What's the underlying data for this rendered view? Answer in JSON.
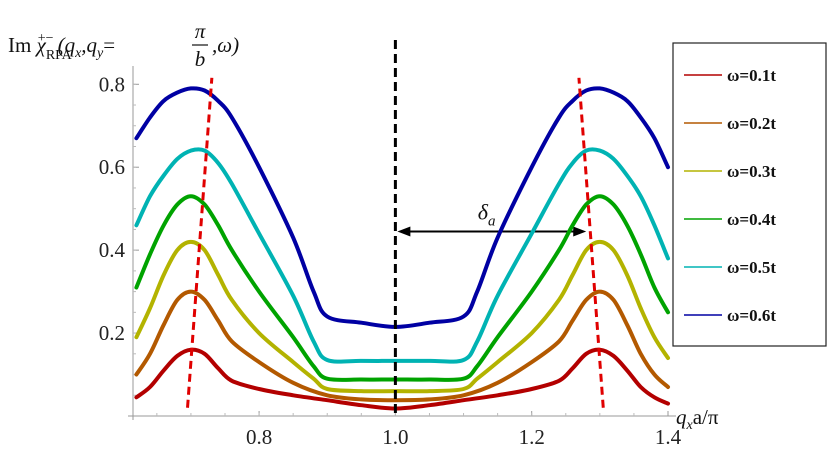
{
  "chart_data": {
    "type": "line",
    "ylabel": "Im χ_RPA^{+-}(q_x,q_y=π/b,ω)",
    "ylabel_parts": {
      "im": "Im",
      "chi": "χ",
      "sub": "RPA",
      "sup": "+−",
      "args_open": "(q",
      "qx_sub": "x",
      "comma_q": ",q",
      "qy_sub": "y",
      "eq": "=",
      "pi": "π",
      "b": "b",
      "tail": ",ω)"
    },
    "xlabel": "q_x a/π",
    "xlabel_parts": {
      "q": "q",
      "sub": "x",
      "rest": "a/π"
    },
    "xlim": [
      0.615,
      1.4
    ],
    "ylim": [
      0.0,
      0.82
    ],
    "x_ticks": [
      "0.8",
      "1.0",
      "1.2",
      "1.4"
    ],
    "x_tick_values": [
      0.8,
      1.0,
      1.2,
      1.4
    ],
    "y_ticks": [
      "0.2",
      "0.4",
      "0.6",
      "0.8"
    ],
    "y_tick_values": [
      0.2,
      0.4,
      0.6,
      0.8
    ],
    "annotation": {
      "text": "δ",
      "sub": "a",
      "x_from": 1.0,
      "x_to": 1.28,
      "y": 0.445
    },
    "series": [
      {
        "name": "ω=0.1t",
        "color": "#b30000",
        "x": [
          0.62,
          0.64,
          0.66,
          0.68,
          0.7,
          0.72,
          0.74,
          0.76,
          0.8,
          0.85,
          0.9,
          0.95,
          1.0,
          1.05,
          1.1,
          1.15,
          1.2,
          1.24,
          1.26,
          1.28,
          1.3,
          1.32,
          1.34,
          1.36,
          1.38,
          1.4
        ],
        "values": [
          0.045,
          0.07,
          0.11,
          0.145,
          0.16,
          0.15,
          0.115,
          0.085,
          0.065,
          0.05,
          0.038,
          0.026,
          0.018,
          0.026,
          0.038,
          0.05,
          0.065,
          0.085,
          0.115,
          0.15,
          0.16,
          0.145,
          0.11,
          0.07,
          0.045,
          0.03
        ]
      },
      {
        "name": "ω=0.2t",
        "color": "#b35900",
        "x": [
          0.62,
          0.64,
          0.66,
          0.68,
          0.7,
          0.72,
          0.74,
          0.76,
          0.8,
          0.85,
          0.9,
          0.95,
          1.0,
          1.05,
          1.1,
          1.15,
          1.2,
          1.24,
          1.26,
          1.28,
          1.3,
          1.32,
          1.34,
          1.36,
          1.38,
          1.4
        ],
        "values": [
          0.1,
          0.15,
          0.22,
          0.28,
          0.3,
          0.28,
          0.23,
          0.18,
          0.13,
          0.08,
          0.05,
          0.04,
          0.038,
          0.04,
          0.05,
          0.08,
          0.13,
          0.18,
          0.23,
          0.28,
          0.3,
          0.28,
          0.22,
          0.15,
          0.1,
          0.07
        ]
      },
      {
        "name": "ω=0.3t",
        "color": "#b3b300",
        "x": [
          0.62,
          0.64,
          0.66,
          0.68,
          0.7,
          0.72,
          0.74,
          0.76,
          0.8,
          0.85,
          0.88,
          0.9,
          0.95,
          1.0,
          1.05,
          1.1,
          1.12,
          1.15,
          1.2,
          1.24,
          1.26,
          1.28,
          1.3,
          1.32,
          1.34,
          1.36,
          1.38,
          1.4
        ],
        "values": [
          0.19,
          0.26,
          0.34,
          0.4,
          0.42,
          0.4,
          0.34,
          0.28,
          0.2,
          0.13,
          0.09,
          0.065,
          0.06,
          0.06,
          0.06,
          0.065,
          0.09,
          0.13,
          0.2,
          0.28,
          0.34,
          0.4,
          0.42,
          0.4,
          0.34,
          0.26,
          0.19,
          0.14
        ]
      },
      {
        "name": "ω=0.4t",
        "color": "#00a300",
        "x": [
          0.62,
          0.64,
          0.66,
          0.68,
          0.7,
          0.72,
          0.74,
          0.76,
          0.8,
          0.85,
          0.88,
          0.9,
          0.95,
          1.0,
          1.05,
          1.1,
          1.12,
          1.15,
          1.2,
          1.24,
          1.26,
          1.28,
          1.3,
          1.32,
          1.34,
          1.36,
          1.38,
          1.4
        ],
        "values": [
          0.31,
          0.39,
          0.46,
          0.51,
          0.53,
          0.51,
          0.46,
          0.4,
          0.3,
          0.19,
          0.12,
          0.09,
          0.088,
          0.088,
          0.088,
          0.09,
          0.12,
          0.19,
          0.3,
          0.4,
          0.46,
          0.51,
          0.53,
          0.51,
          0.46,
          0.39,
          0.31,
          0.25
        ]
      },
      {
        "name": "ω=0.5t",
        "color": "#00b3b3",
        "x": [
          0.62,
          0.64,
          0.66,
          0.68,
          0.7,
          0.72,
          0.74,
          0.76,
          0.8,
          0.85,
          0.88,
          0.9,
          0.95,
          1.0,
          1.05,
          1.1,
          1.12,
          1.15,
          1.2,
          1.24,
          1.26,
          1.28,
          1.3,
          1.32,
          1.34,
          1.36,
          1.38,
          1.4
        ],
        "values": [
          0.46,
          0.53,
          0.58,
          0.62,
          0.64,
          0.64,
          0.61,
          0.56,
          0.44,
          0.29,
          0.18,
          0.135,
          0.133,
          0.133,
          0.133,
          0.135,
          0.18,
          0.29,
          0.44,
          0.56,
          0.61,
          0.64,
          0.64,
          0.62,
          0.58,
          0.53,
          0.46,
          0.38
        ]
      },
      {
        "name": "ω=0.6t",
        "color": "#0000a3",
        "x": [
          0.62,
          0.64,
          0.66,
          0.68,
          0.7,
          0.72,
          0.74,
          0.76,
          0.8,
          0.85,
          0.88,
          0.9,
          0.95,
          1.0,
          1.05,
          1.1,
          1.12,
          1.15,
          1.2,
          1.24,
          1.26,
          1.28,
          1.3,
          1.32,
          1.34,
          1.36,
          1.38,
          1.4
        ],
        "values": [
          0.67,
          0.72,
          0.76,
          0.78,
          0.79,
          0.785,
          0.76,
          0.72,
          0.6,
          0.43,
          0.3,
          0.24,
          0.225,
          0.215,
          0.225,
          0.24,
          0.3,
          0.43,
          0.6,
          0.72,
          0.76,
          0.785,
          0.79,
          0.78,
          0.76,
          0.72,
          0.67,
          0.6
        ]
      }
    ],
    "reference_lines": [
      {
        "kind": "vertical-dashed",
        "color": "#000000",
        "x": 1.0
      },
      {
        "kind": "peak-trend-dashed",
        "color": "#e00000",
        "points": [
          [
            0.695,
            0.02
          ],
          [
            0.73,
            0.8
          ]
        ]
      },
      {
        "kind": "peak-trend-dashed",
        "color": "#e00000",
        "points": [
          [
            1.305,
            0.02
          ],
          [
            1.27,
            0.8
          ]
        ]
      }
    ],
    "legend": {
      "position": "right",
      "border": true
    }
  }
}
